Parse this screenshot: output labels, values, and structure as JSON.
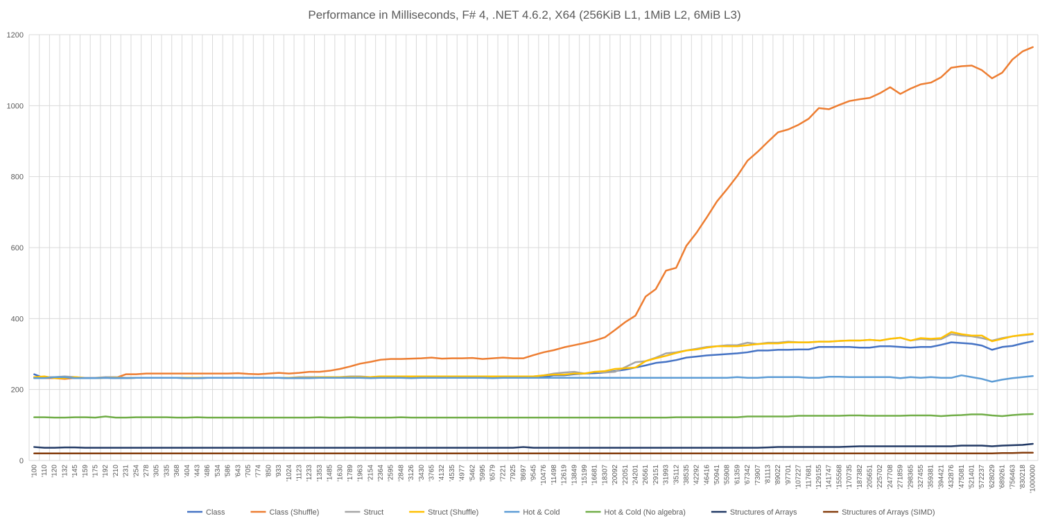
{
  "chart_data": {
    "type": "line",
    "title": "Performance in Milliseconds, F# 4, .NET 4.6.2, X64 (256KiB L1, 1MiB L2, 6MiB L3)",
    "xlabel": "",
    "ylabel": "",
    "ylim": [
      0,
      1200
    ],
    "yticks": [
      "0",
      "200",
      "400",
      "600",
      "800",
      "1000",
      "1200"
    ],
    "grid": true,
    "legend_position": "bottom",
    "categories": [
      "'100",
      "'110",
      "'120",
      "'132",
      "'145",
      "'159",
      "'175",
      "'192",
      "'210",
      "'231",
      "'254",
      "'278",
      "'305",
      "'335",
      "'368",
      "'404",
      "'443",
      "'486",
      "'534",
      "'586",
      "'643",
      "'705",
      "'774",
      "'850",
      "'933",
      "'1024",
      "'1123",
      "'1233",
      "'1353",
      "'1485",
      "'1630",
      "'1789",
      "'1963",
      "'2154",
      "'2364",
      "'2595",
      "'2848",
      "'3126",
      "'3430",
      "'3765",
      "'4132",
      "'4535",
      "'4977",
      "'5462",
      "'5995",
      "'6579",
      "'7221",
      "'7925",
      "'8697",
      "'9545",
      "'10476",
      "'11498",
      "'12619",
      "'13849",
      "'15199",
      "'16681",
      "'18307",
      "'20092",
      "'22051",
      "'24201",
      "'26561",
      "'29151",
      "'31993",
      "'35112",
      "'38535",
      "'42292",
      "'46416",
      "'50941",
      "'55908",
      "'61359",
      "'67342",
      "'73907",
      "'81113",
      "'89022",
      "'97701",
      "'107227",
      "'117681",
      "'129155",
      "'141747",
      "'155568",
      "'170735",
      "'187382",
      "'205651",
      "'225702",
      "'247708",
      "'271859",
      "'298365",
      "'327455",
      "'359381",
      "'394421",
      "'432876",
      "'475081",
      "'521401",
      "'572237",
      "'628029",
      "'689261",
      "'756463",
      "'830218",
      "'1000000"
    ],
    "series": [
      {
        "name": "Class",
        "color": "#4472c4",
        "values": [
          243,
          232,
          235,
          235,
          232,
          232,
          232,
          233,
          232,
          232,
          233,
          233,
          233,
          233,
          233,
          232,
          232,
          233,
          233,
          233,
          233,
          233,
          233,
          233,
          233,
          232,
          233,
          233,
          233,
          233,
          233,
          233,
          233,
          233,
          233,
          233,
          233,
          233,
          233,
          233,
          233,
          233,
          233,
          233,
          233,
          233,
          233,
          233,
          233,
          233,
          235,
          240,
          240,
          243,
          245,
          246,
          248,
          252,
          256,
          262,
          268,
          275,
          278,
          283,
          290,
          293,
          296,
          298,
          300,
          302,
          305,
          310,
          310,
          312,
          312,
          313,
          313,
          320,
          320,
          320,
          320,
          318,
          318,
          322,
          322,
          320,
          318,
          320,
          320,
          326,
          333,
          331,
          329,
          324,
          312,
          320,
          323,
          330,
          336
        ]
      },
      {
        "name": "Class (Shuffle)",
        "color": "#ed7d31",
        "values": [
          235,
          232,
          232,
          230,
          233,
          233,
          233,
          233,
          233,
          243,
          243,
          245,
          245,
          245,
          245,
          245,
          245,
          245,
          245,
          245,
          246,
          244,
          243,
          245,
          247,
          245,
          247,
          250,
          250,
          253,
          258,
          265,
          273,
          278,
          284,
          286,
          286,
          287,
          288,
          290,
          287,
          288,
          288,
          289,
          286,
          288,
          290,
          288,
          288,
          297,
          305,
          311,
          319,
          325,
          331,
          338,
          347,
          368,
          390,
          408,
          462,
          483,
          535,
          543,
          605,
          642,
          685,
          730,
          765,
          802,
          845,
          870,
          898,
          925,
          933,
          946,
          963,
          993,
          990,
          1002,
          1013,
          1018,
          1022,
          1035,
          1052,
          1033,
          1048,
          1060,
          1065,
          1080,
          1107,
          1111,
          1113,
          1100,
          1077,
          1093,
          1130,
          1153,
          1165
        ]
      },
      {
        "name": "Struct",
        "color": "#a5a5a5",
        "values": [
          233,
          235,
          235,
          237,
          235,
          233,
          233,
          235,
          235,
          233,
          233,
          233,
          233,
          233,
          233,
          233,
          233,
          233,
          233,
          233,
          233,
          233,
          233,
          233,
          233,
          233,
          235,
          235,
          235,
          235,
          235,
          237,
          237,
          235,
          237,
          237,
          237,
          237,
          237,
          237,
          237,
          237,
          237,
          237,
          237,
          237,
          237,
          237,
          237,
          237,
          240,
          245,
          248,
          250,
          245,
          250,
          248,
          250,
          263,
          277,
          280,
          290,
          302,
          305,
          310,
          315,
          320,
          322,
          325,
          325,
          332,
          328,
          332,
          332,
          335,
          333,
          333,
          335,
          335,
          337,
          338,
          338,
          340,
          338,
          343,
          346,
          338,
          342,
          340,
          342,
          356,
          352,
          350,
          345,
          338,
          345,
          350,
          353,
          356
        ]
      },
      {
        "name": "Struct (Shuffle)",
        "color": "#ffc000",
        "values": [
          235,
          237,
          232,
          232,
          235,
          232,
          232,
          233,
          233,
          232,
          233,
          233,
          233,
          233,
          233,
          233,
          233,
          233,
          233,
          233,
          233,
          233,
          233,
          233,
          233,
          233,
          233,
          233,
          235,
          235,
          235,
          235,
          235,
          235,
          237,
          237,
          237,
          237,
          237,
          237,
          237,
          237,
          237,
          237,
          237,
          237,
          237,
          237,
          237,
          237,
          240,
          242,
          242,
          245,
          245,
          250,
          252,
          258,
          260,
          262,
          280,
          288,
          295,
          303,
          310,
          313,
          318,
          322,
          322,
          322,
          325,
          328,
          330,
          330,
          333,
          333,
          333,
          335,
          335,
          337,
          338,
          338,
          340,
          338,
          343,
          346,
          338,
          345,
          343,
          345,
          362,
          356,
          352,
          352,
          336,
          343,
          350,
          354,
          357
        ]
      },
      {
        "name": "Hot & Cold",
        "color": "#5b9bd5",
        "values": [
          232,
          232,
          235,
          235,
          232,
          232,
          232,
          233,
          232,
          232,
          233,
          233,
          233,
          233,
          233,
          232,
          232,
          233,
          233,
          233,
          233,
          233,
          233,
          233,
          233,
          232,
          232,
          232,
          233,
          233,
          233,
          233,
          233,
          232,
          233,
          233,
          233,
          232,
          233,
          233,
          233,
          233,
          233,
          233,
          233,
          232,
          233,
          233,
          233,
          233,
          233,
          233,
          233,
          233,
          233,
          233,
          233,
          233,
          233,
          233,
          233,
          233,
          233,
          233,
          233,
          233,
          233,
          233,
          233,
          235,
          233,
          233,
          235,
          235,
          235,
          235,
          233,
          233,
          236,
          236,
          235,
          235,
          235,
          235,
          235,
          232,
          235,
          233,
          235,
          233,
          233,
          240,
          235,
          230,
          222,
          228,
          232,
          235,
          238
        ]
      },
      {
        "name": "Hot & Cold (No algebra)",
        "color": "#70ad47",
        "values": [
          122,
          122,
          121,
          121,
          122,
          122,
          121,
          124,
          121,
          121,
          122,
          122,
          122,
          122,
          121,
          121,
          122,
          121,
          121,
          121,
          121,
          121,
          121,
          121,
          121,
          121,
          121,
          121,
          122,
          121,
          121,
          122,
          121,
          121,
          121,
          121,
          122,
          121,
          121,
          121,
          121,
          121,
          121,
          121,
          121,
          121,
          121,
          121,
          121,
          121,
          121,
          121,
          121,
          121,
          121,
          121,
          121,
          121,
          121,
          121,
          121,
          121,
          121,
          122,
          122,
          122,
          122,
          122,
          122,
          122,
          124,
          124,
          124,
          124,
          124,
          126,
          126,
          126,
          126,
          126,
          127,
          127,
          126,
          126,
          126,
          126,
          127,
          127,
          127,
          125,
          127,
          128,
          130,
          130,
          127,
          125,
          128,
          130,
          131
        ]
      },
      {
        "name": "Structures of Arrays",
        "color": "#203864",
        "values": [
          38,
          36,
          36,
          37,
          37,
          36,
          36,
          36,
          36,
          36,
          36,
          36,
          36,
          36,
          36,
          36,
          36,
          36,
          36,
          36,
          36,
          36,
          36,
          36,
          36,
          36,
          36,
          36,
          36,
          36,
          36,
          36,
          36,
          36,
          36,
          36,
          36,
          36,
          36,
          36,
          36,
          36,
          36,
          36,
          36,
          36,
          36,
          36,
          38,
          36,
          36,
          36,
          36,
          36,
          36,
          36,
          36,
          36,
          36,
          36,
          36,
          36,
          36,
          36,
          36,
          36,
          36,
          36,
          36,
          36,
          36,
          36,
          37,
          38,
          38,
          38,
          38,
          38,
          38,
          38,
          39,
          40,
          40,
          40,
          40,
          40,
          40,
          40,
          40,
          40,
          40,
          42,
          42,
          42,
          40,
          42,
          43,
          44,
          47
        ]
      },
      {
        "name": "Structures of Arrays (SIMD)",
        "color": "#843c0c",
        "values": [
          20,
          20,
          20,
          20,
          20,
          20,
          20,
          20,
          20,
          20,
          20,
          20,
          20,
          20,
          20,
          20,
          20,
          20,
          20,
          20,
          20,
          20,
          20,
          20,
          20,
          20,
          20,
          20,
          20,
          20,
          20,
          20,
          20,
          20,
          20,
          20,
          20,
          20,
          20,
          20,
          20,
          20,
          20,
          20,
          20,
          20,
          20,
          20,
          20,
          20,
          20,
          20,
          20,
          20,
          20,
          20,
          20,
          20,
          20,
          20,
          20,
          20,
          20,
          20,
          20,
          20,
          20,
          20,
          20,
          20,
          20,
          20,
          20,
          20,
          20,
          20,
          20,
          20,
          20,
          20,
          20,
          20,
          20,
          20,
          20,
          20,
          20,
          20,
          20,
          20,
          20,
          20,
          20,
          20,
          20,
          21,
          21,
          22,
          22
        ]
      }
    ]
  }
}
